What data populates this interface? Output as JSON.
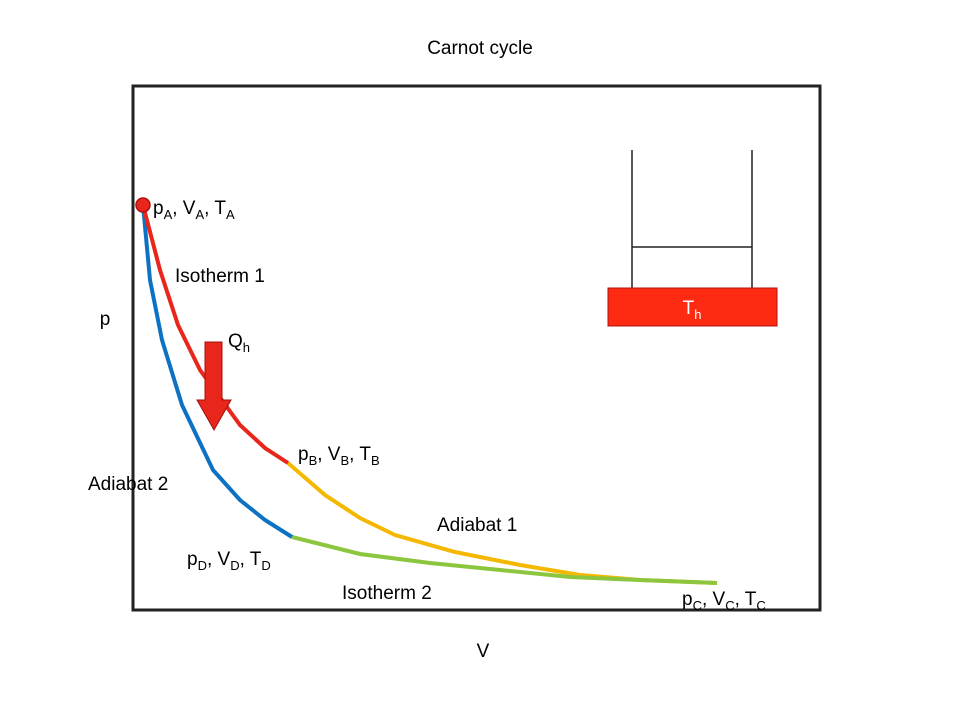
{
  "title": "Carnot cycle",
  "axes": {
    "y_label": "p",
    "x_label": "V"
  },
  "points": [
    {
      "segments": [
        {
          "text": "p"
        },
        {
          "sub": "A"
        },
        {
          "text": ", V"
        },
        {
          "sub": "A"
        },
        {
          "text": ", T"
        },
        {
          "sub": "A"
        }
      ]
    },
    {
      "segments": [
        {
          "text": "p"
        },
        {
          "sub": "B"
        },
        {
          "text": ", V"
        },
        {
          "sub": "B"
        },
        {
          "text": ", T"
        },
        {
          "sub": "B"
        }
      ]
    },
    {
      "segments": [
        {
          "text": "p"
        },
        {
          "sub": "C"
        },
        {
          "text": ", V"
        },
        {
          "sub": "C"
        },
        {
          "text": ", T"
        },
        {
          "sub": "C"
        }
      ]
    },
    {
      "segments": [
        {
          "text": "p"
        },
        {
          "sub": "D"
        },
        {
          "text": ", V"
        },
        {
          "sub": "D"
        },
        {
          "text": ", T"
        },
        {
          "sub": "D"
        }
      ]
    }
  ],
  "curves": {
    "isotherm_1": "Isotherm 1",
    "adiabat_1": "Adiabat 1",
    "isotherm_2": "Isotherm 2",
    "adiabat_2": "Adiabat 2"
  },
  "heat": {
    "segments": [
      {
        "text": "Q"
      },
      {
        "sub": "h"
      }
    ]
  },
  "reservoir": {
    "segments": [
      {
        "text": "T"
      },
      {
        "sub": "h"
      }
    ]
  }
}
